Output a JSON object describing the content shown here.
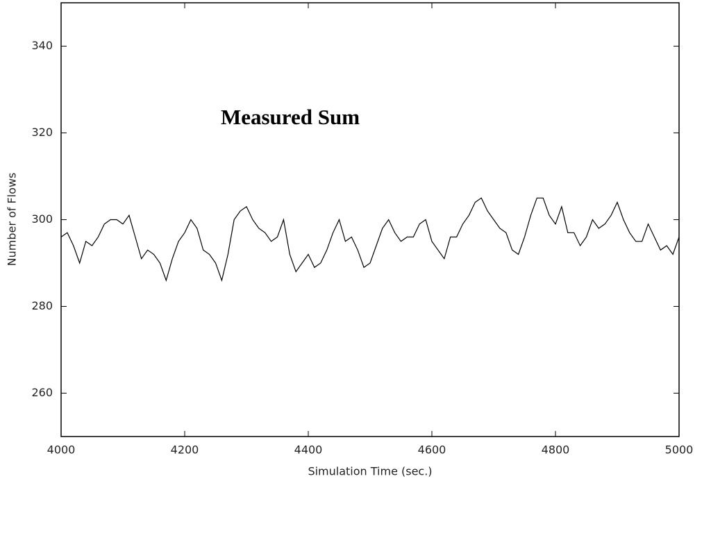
{
  "chart_data": {
    "type": "line",
    "annotation": "Measured Sum",
    "xlabel": "Simulation Time (sec.)",
    "ylabel": "Number of Flows",
    "x": [
      4000,
      4010,
      4020,
      4030,
      4040,
      4050,
      4060,
      4070,
      4080,
      4090,
      4100,
      4110,
      4120,
      4130,
      4140,
      4150,
      4160,
      4170,
      4180,
      4190,
      4200,
      4210,
      4220,
      4230,
      4240,
      4250,
      4260,
      4270,
      4280,
      4290,
      4300,
      4310,
      4320,
      4330,
      4340,
      4350,
      4360,
      4370,
      4380,
      4390,
      4400,
      4410,
      4420,
      4430,
      4440,
      4450,
      4460,
      4470,
      4480,
      4490,
      4500,
      4510,
      4520,
      4530,
      4540,
      4550,
      4560,
      4570,
      4580,
      4590,
      4600,
      4610,
      4620,
      4630,
      4640,
      4650,
      4660,
      4670,
      4680,
      4690,
      4700,
      4710,
      4720,
      4730,
      4740,
      4750,
      4760,
      4770,
      4780,
      4790,
      4800,
      4810,
      4820,
      4830,
      4840,
      4850,
      4860,
      4870,
      4880,
      4890,
      4900,
      4910,
      4920,
      4930,
      4940,
      4950,
      4960,
      4970,
      4980,
      4990,
      5000
    ],
    "values": [
      296,
      297,
      294,
      290,
      295,
      294,
      296,
      299,
      300,
      300,
      299,
      301,
      296,
      291,
      293,
      292,
      290,
      286,
      291,
      295,
      297,
      300,
      298,
      293,
      292,
      290,
      286,
      292,
      300,
      302,
      303,
      300,
      298,
      297,
      295,
      296,
      300,
      292,
      288,
      290,
      292,
      289,
      290,
      293,
      297,
      300,
      295,
      296,
      293,
      289,
      290,
      294,
      298,
      300,
      297,
      295,
      296,
      296,
      299,
      300,
      295,
      293,
      291,
      296,
      296,
      299,
      301,
      304,
      305,
      302,
      300,
      298,
      297,
      293,
      292,
      296,
      301,
      305,
      305,
      301,
      299,
      303,
      297,
      297,
      294,
      296,
      300,
      298,
      299,
      301,
      304,
      300,
      297,
      295,
      295,
      299,
      296,
      293,
      294,
      292,
      296
    ],
    "color": "#000000",
    "xlim": [
      4000,
      5000
    ],
    "xticks": [
      4000,
      4200,
      4400,
      4600,
      4800,
      5000
    ],
    "ylim": [
      250,
      350
    ],
    "yticks": [
      260,
      280,
      300,
      320,
      340
    ],
    "grid": false
  }
}
